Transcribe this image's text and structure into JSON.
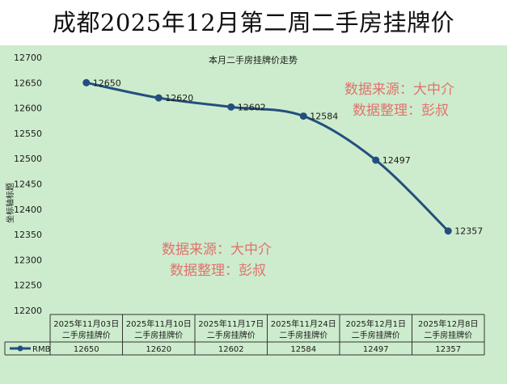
{
  "page": {
    "title": "成都2025年12月第二周二手房挂牌价"
  },
  "chart_data": {
    "type": "line",
    "title": "本月二手房挂牌价走势",
    "xlabel": "",
    "ylabel": "坐标轴标题",
    "ylim": [
      12200,
      12700
    ],
    "ytick_step": 50,
    "yticks": [
      "12700",
      "12650",
      "12600",
      "12550",
      "12500",
      "12450",
      "12400",
      "12350",
      "12300",
      "12250",
      "12200"
    ],
    "categories": [
      {
        "date": "2025年11月03日",
        "label": "二手房挂牌价"
      },
      {
        "date": "2025年11月10日",
        "label": "二手房挂牌价"
      },
      {
        "date": "2025年11月17日",
        "label": "二手房挂牌价"
      },
      {
        "date": "2025年11月24日",
        "label": "二手房挂牌价"
      },
      {
        "date": "2025年12月1日",
        "label": "二手房挂牌价"
      },
      {
        "date": "2025年12月8日",
        "label": "二手房挂牌价"
      }
    ],
    "series": [
      {
        "name": "RMB",
        "values": [
          12650,
          12620,
          12602,
          12584,
          12497,
          12357
        ],
        "color": "#234f7e"
      }
    ],
    "data_labels": true,
    "data_table": true,
    "grid": false
  },
  "watermarks": [
    {
      "line1": "数据来源：大中介",
      "line2": "数据整理：彭叔"
    },
    {
      "line1": "数据来源：大中介",
      "line2": "数据整理：彭叔"
    }
  ]
}
